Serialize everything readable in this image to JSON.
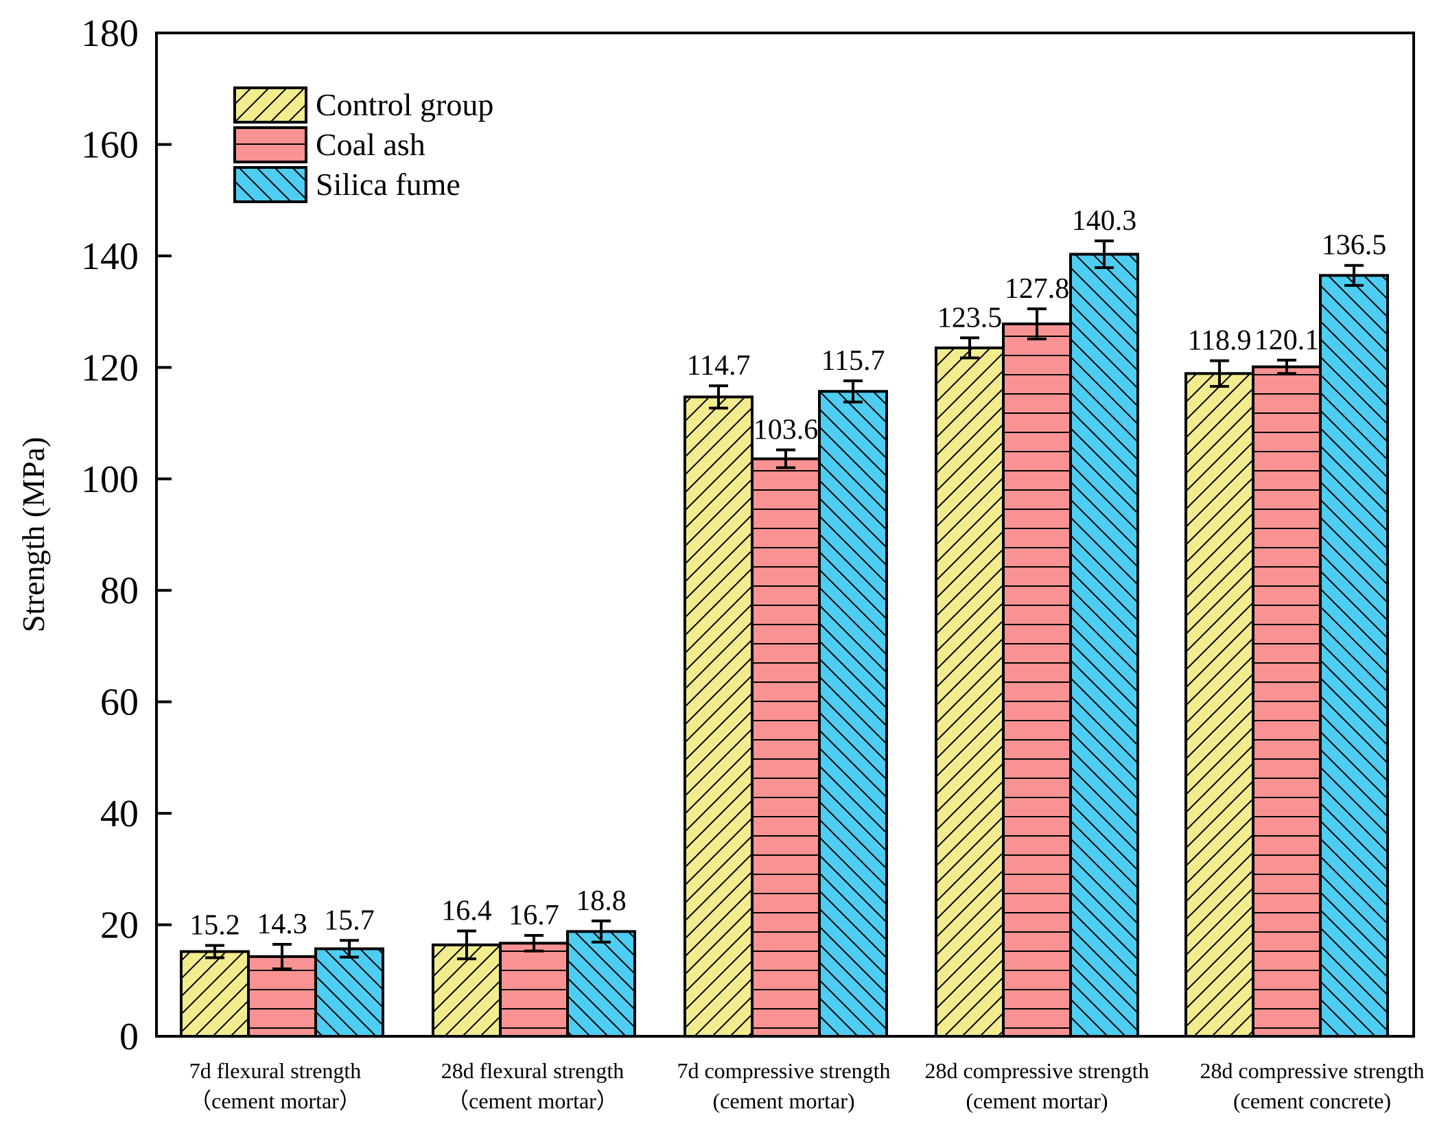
{
  "chart_data": {
    "type": "bar",
    "title": "",
    "xlabel": "",
    "ylabel": "Strength (MPa)",
    "ylim": [
      0,
      180
    ],
    "yticks": [
      0,
      20,
      40,
      60,
      80,
      100,
      120,
      140,
      160,
      180
    ],
    "grid": false,
    "legend_position": "top-left",
    "categories": [
      {
        "line1": "7d flexural strength",
        "line2": "（cement mortar）"
      },
      {
        "line1": "28d flexural strength",
        "line2": "（cement mortar）"
      },
      {
        "line1": "7d compressive strength",
        "line2": "(cement mortar)"
      },
      {
        "line1": "28d compressive strength",
        "line2": "(cement mortar)"
      },
      {
        "line1": "28d compressive strength",
        "line2": "(cement concrete)"
      }
    ],
    "series": [
      {
        "name": "Control group",
        "color": "#f2ec8f",
        "hatch": "diagonal-forward",
        "values": [
          15.2,
          16.4,
          114.7,
          123.5,
          118.9
        ],
        "errors": [
          1.1,
          2.5,
          2.0,
          1.8,
          2.3
        ],
        "labels": [
          "15.2",
          "16.4",
          "114.7",
          "123.5",
          "118.9"
        ]
      },
      {
        "name": "Coal ash",
        "color": "#f99393",
        "hatch": "horizontal",
        "values": [
          14.3,
          16.7,
          103.6,
          127.8,
          120.1
        ],
        "errors": [
          2.2,
          1.4,
          1.6,
          2.7,
          1.2
        ],
        "labels": [
          "14.3",
          "16.7",
          "103.6",
          "127.8",
          "120.1"
        ]
      },
      {
        "name": "Silica fume",
        "color": "#4dcdf2",
        "hatch": "diagonal-backward",
        "values": [
          15.7,
          18.8,
          115.7,
          140.3,
          136.5
        ],
        "errors": [
          1.5,
          1.9,
          1.9,
          2.4,
          1.8
        ],
        "labels": [
          "15.7",
          "18.8",
          "115.7",
          "140.3",
          "136.5"
        ]
      }
    ]
  }
}
